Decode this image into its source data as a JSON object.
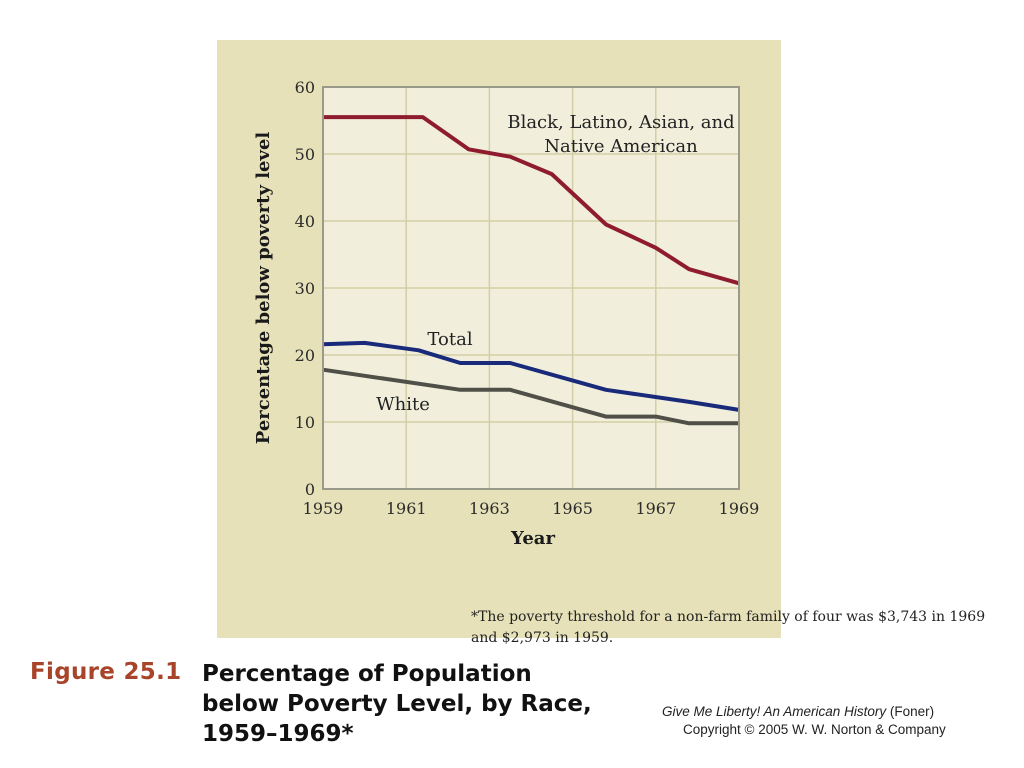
{
  "figure": {
    "number": "Figure 25.1",
    "title_lines": [
      "Percentage of  Population",
      "below Poverty Level, by Race,",
      "1959–1969*"
    ]
  },
  "source": {
    "book_title": "Give Me Liberty! An American History",
    "author": " (Foner)",
    "copyright": "Copyright © 2005 W. W. Norton & Company"
  },
  "footnote": {
    "marker": "*",
    "text": "The poverty threshold for a non-farm family of four was  $3,743 in 1969 and $2,973 in 1959."
  },
  "colors": {
    "panel_background": "#e6e1b8",
    "plot_background": "#f1efdc",
    "gridline": "#d3cfa4",
    "axis": "#9a9a8a",
    "minority_series": "#8e1b2e",
    "total_series": "#1a2a7a",
    "white_series": "#505048"
  },
  "chart_data": {
    "type": "line",
    "title": "",
    "xlabel": "Year",
    "ylabel": "Percentage below poverty level",
    "xlim": [
      1959,
      1969
    ],
    "ylim": [
      0,
      60
    ],
    "x_ticks": [
      "1959",
      "1961",
      "1963",
      "1965",
      "1967",
      "1969"
    ],
    "y_ticks": [
      "0",
      "10",
      "20",
      "30",
      "40",
      "50",
      "60"
    ],
    "grid": true,
    "legend": "none (series labeled directly on chart)",
    "series": [
      {
        "name": "Black, Latino, Asian, and Native American",
        "label_lines": [
          "Black, Latino, Asian, and",
          "Native American"
        ],
        "color_key": "minority_series",
        "x": [
          1959,
          1960,
          1961,
          1961.4,
          1962.5,
          1963.5,
          1964.5,
          1965.8,
          1967,
          1967.8,
          1969
        ],
        "y": [
          55.5,
          55.5,
          55.5,
          55.5,
          50.7,
          49.6,
          47,
          39.5,
          36,
          32.8,
          30.7
        ]
      },
      {
        "name": "Total",
        "label_lines": [
          "Total"
        ],
        "color_key": "total_series",
        "x": [
          1959,
          1960,
          1961.3,
          1962.3,
          1963.5,
          1965.8,
          1967.8,
          1969
        ],
        "y": [
          21.6,
          21.8,
          20.7,
          18.8,
          18.8,
          14.8,
          13,
          11.8
        ]
      },
      {
        "name": "White",
        "label_lines": [
          "White"
        ],
        "color_key": "white_series",
        "x": [
          1959,
          1962.3,
          1963.5,
          1965.8,
          1967,
          1967.8,
          1969
        ],
        "y": [
          17.8,
          14.8,
          14.8,
          10.8,
          10.8,
          9.8,
          9.8
        ]
      }
    ]
  }
}
